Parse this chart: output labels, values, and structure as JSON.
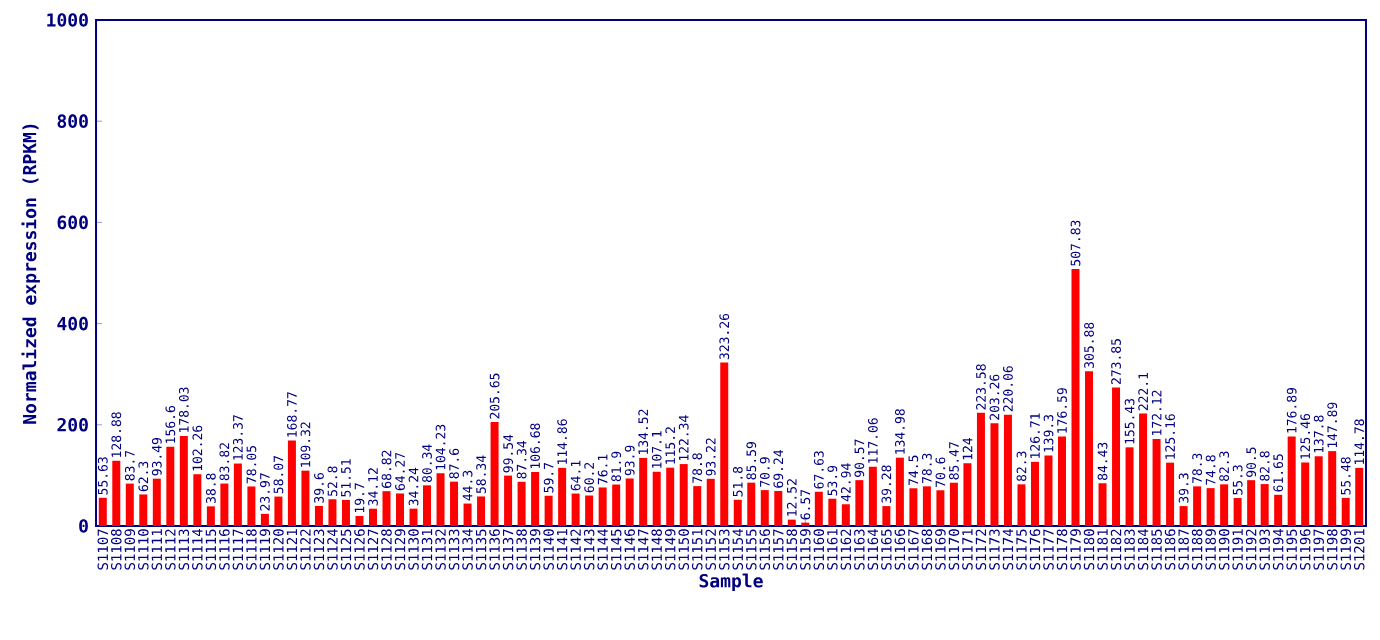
{
  "chart_data": {
    "type": "bar",
    "xlabel": "Sample",
    "ylabel": "Normalized expression (RPKM)",
    "categories": [
      "S1107",
      "S1108",
      "S1109",
      "S1110",
      "S1111",
      "S1112",
      "S1113",
      "S1114",
      "S1115",
      "S1116",
      "S1117",
      "S1118",
      "S1119",
      "S1120",
      "S1121",
      "S1122",
      "S1123",
      "S1124",
      "S1125",
      "S1126",
      "S1127",
      "S1128",
      "S1129",
      "S1130",
      "S1131",
      "S1132",
      "S1133",
      "S1134",
      "S1135",
      "S1136",
      "S1137",
      "S1138",
      "S1139",
      "S1140",
      "S1141",
      "S1142",
      "S1143",
      "S1144",
      "S1145",
      "S1146",
      "S1147",
      "S1148",
      "S1149",
      "S1150",
      "S1151",
      "S1152",
      "S1153",
      "S1154",
      "S1155",
      "S1156",
      "S1157",
      "S1158",
      "S1159",
      "S1160",
      "S1161",
      "S1162",
      "S1163",
      "S1164",
      "S1165",
      "S1166",
      "S1167",
      "S1168",
      "S1169",
      "S1170",
      "S1171",
      "S1172",
      "S1173",
      "S1174",
      "S1175",
      "S1176",
      "S1177",
      "S1178",
      "S1179",
      "S1180",
      "S1181",
      "S1182",
      "S1183",
      "S1184",
      "S1185",
      "S1186",
      "S1187",
      "S1188",
      "S1189",
      "S1190",
      "S1191",
      "S1192",
      "S1193",
      "S1194",
      "S1195",
      "S1196",
      "S1197",
      "S1198",
      "S1199",
      "S1201"
    ],
    "values": [
      55.63,
      128.88,
      83.7,
      62.3,
      93.49,
      156.6,
      178.03,
      102.26,
      38.8,
      83.82,
      123.37,
      78.05,
      23.97,
      58.07,
      168.77,
      109.32,
      39.6,
      52.8,
      51.51,
      19.7,
      34.12,
      68.82,
      64.27,
      34.24,
      80.34,
      104.23,
      87.6,
      44.3,
      58.34,
      205.65,
      99.54,
      87.34,
      106.68,
      59.7,
      114.86,
      64.1,
      60.2,
      76.1,
      81.9,
      93.9,
      134.52,
      107.1,
      115.2,
      122.34,
      78.8,
      93.22,
      323.26,
      51.8,
      85.59,
      70.9,
      69.24,
      12.52,
      6.57,
      67.63,
      53.9,
      42.94,
      90.57,
      117.06,
      39.28,
      134.98,
      74.5,
      78.3,
      70.6,
      85.47,
      124,
      223.58,
      203.26,
      220.06,
      82.3,
      126.71,
      139.3,
      176.59,
      507.83,
      305.88,
      84.43,
      273.85,
      155.43,
      222.1,
      172.12,
      125.16,
      39.3,
      78.3,
      74.8,
      82.3,
      55.3,
      90.5,
      82.8,
      61.65,
      176.89,
      125.46,
      137.8,
      147.89,
      55.48,
      114.78
    ],
    "color": "#ff0000",
    "ylim": [
      0,
      1000
    ],
    "yticks": [
      0,
      200,
      400,
      600,
      800,
      1000
    ],
    "data_labels": true
  }
}
